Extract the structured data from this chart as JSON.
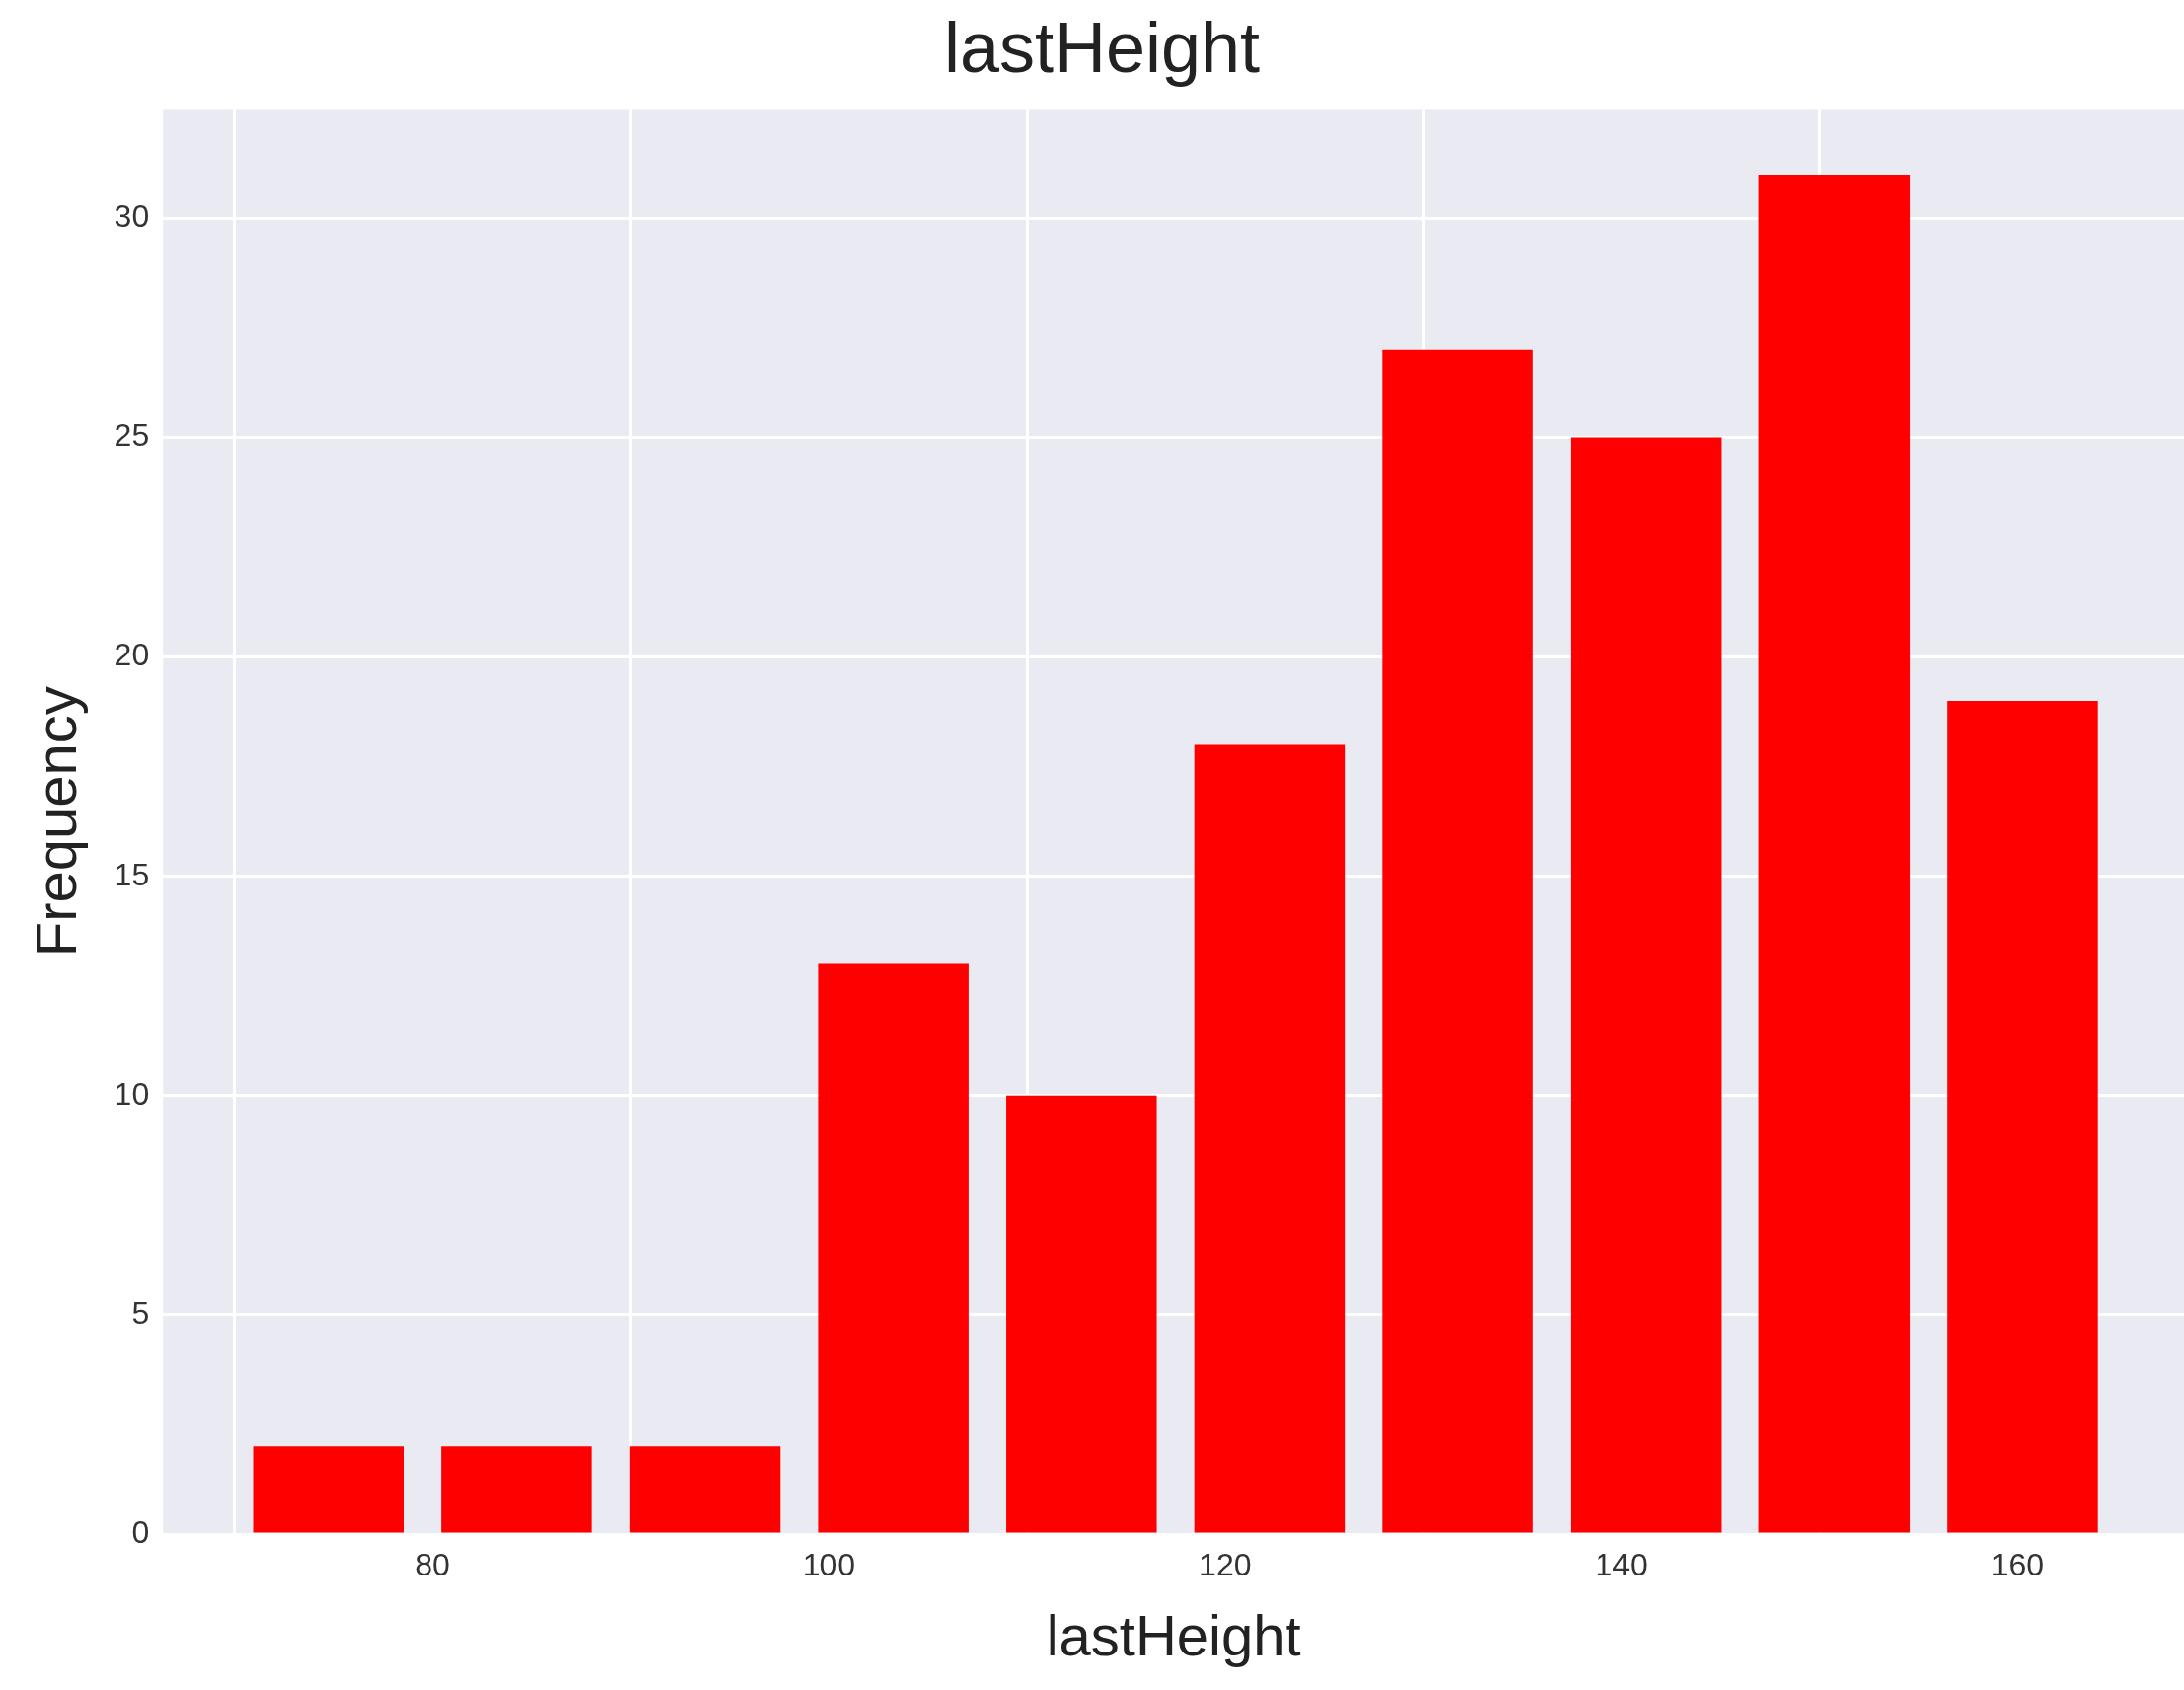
{
  "chart_data": {
    "type": "histogram",
    "title": "lastHeight",
    "xlabel": "lastHeight",
    "ylabel": "Frequency",
    "bins": [
      70,
      79.5,
      89,
      98.5,
      108,
      117.5,
      127,
      136.5,
      146,
      155.5,
      165
    ],
    "values": [
      2,
      2,
      2,
      13,
      10,
      18,
      27,
      25,
      31,
      19
    ],
    "color": "#ff0000",
    "xlim": [
      66.4,
      168.4
    ],
    "xticks": [
      80,
      100,
      120,
      140,
      160
    ],
    "ylim": [
      0,
      32.5
    ],
    "yticks": [
      0,
      5,
      10,
      15,
      20,
      25,
      30
    ],
    "grid": true
  }
}
